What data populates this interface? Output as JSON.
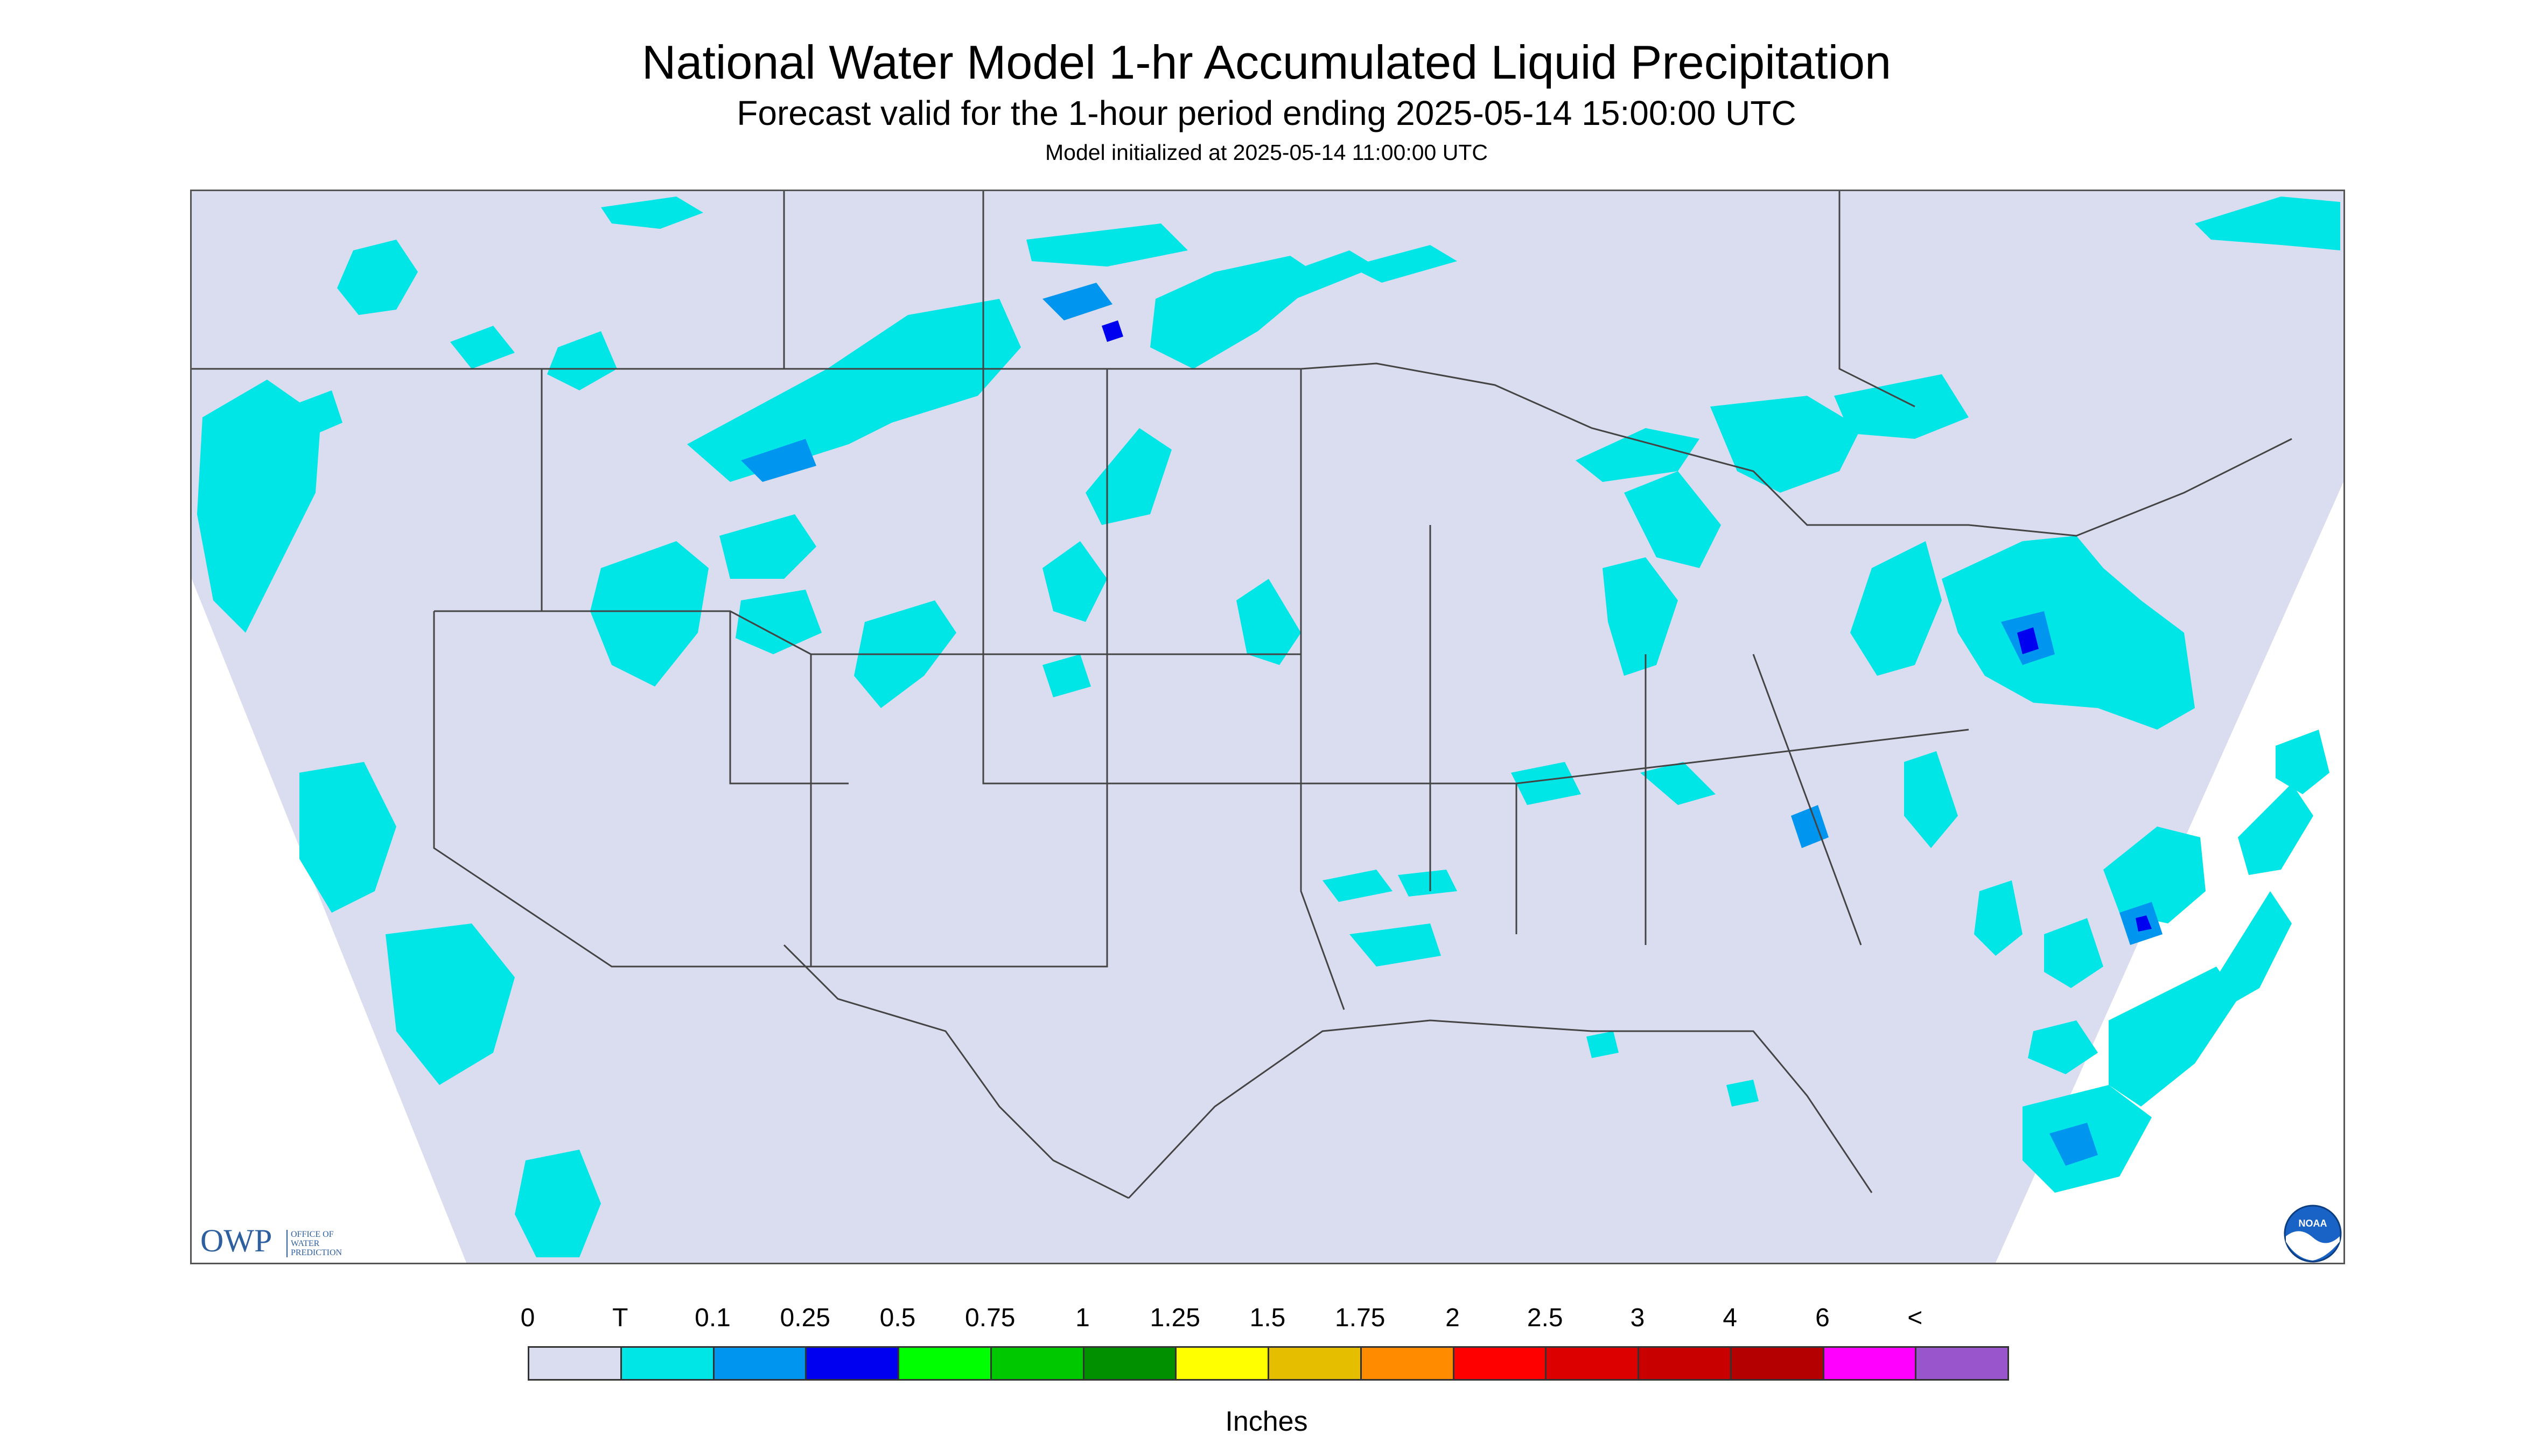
{
  "header": {
    "title": "National Water Model 1-hr Accumulated Liquid Precipitation",
    "subtitle": "Forecast valid for the 1-hour period ending 2025-05-14 15:00:00 UTC",
    "init_line": "Model initialized at 2025-05-14 11:00:00 UTC"
  },
  "map": {
    "background_color": "#dadcef",
    "outside_color": "#ffffff",
    "light_precip_color": "#00e6e6",
    "moderate_precip_color": "#0096f0",
    "heavy_precip_color": "#0000f0",
    "border_color": "#444444",
    "icons": [
      "owp-logo",
      "noaa-logo"
    ]
  },
  "logos": {
    "owp_letters": "OWP",
    "owp_line1": "OFFICE OF",
    "owp_line2": "WATER",
    "owp_line3": "PREDICTION",
    "noaa_text": "NOAA"
  },
  "legend": {
    "units": "Inches",
    "tick_labels": [
      "0",
      "T",
      "0.1",
      "0.25",
      "0.5",
      "0.75",
      "1",
      "1.25",
      "1.5",
      "1.75",
      "2",
      "2.5",
      "3",
      "4",
      "6",
      "<"
    ],
    "bins": [
      {
        "color": "#dadcef"
      },
      {
        "color": "#00e6e6"
      },
      {
        "color": "#0096f0"
      },
      {
        "color": "#0000f0"
      },
      {
        "color": "#00ff00"
      },
      {
        "color": "#00c800"
      },
      {
        "color": "#009000"
      },
      {
        "color": "#ffff00"
      },
      {
        "color": "#e6be00"
      },
      {
        "color": "#ff8c00"
      },
      {
        "color": "#ff0000"
      },
      {
        "color": "#dc0000"
      },
      {
        "color": "#c80000"
      },
      {
        "color": "#b40000"
      },
      {
        "color": "#ff00ff"
      },
      {
        "color": "#9955cc"
      }
    ]
  }
}
